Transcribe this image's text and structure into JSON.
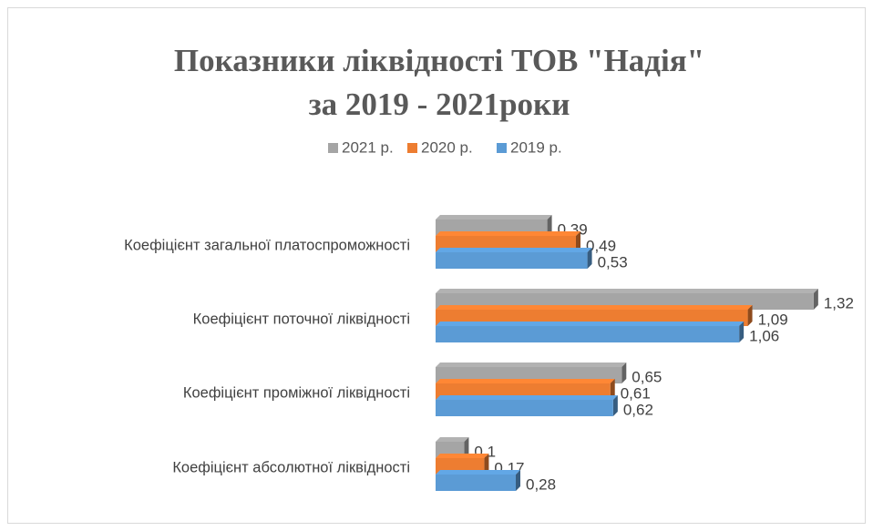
{
  "chart_data": {
    "type": "bar",
    "orientation": "horizontal",
    "title": [
      "Показники ліквідності ТОВ \"Надія\"",
      "за 2019 - 2021роки"
    ],
    "categories": [
      "Коефіцієнт загальної платоспроможності",
      "Коефіцієнт поточної ліквідності",
      "Коефіцієнт проміжної ліквідності",
      "Коефіцієнт абсолютної ліквідності"
    ],
    "series": [
      {
        "name": "2021 р.",
        "color": "#a5a5a5",
        "values": [
          0.39,
          1.32,
          0.65,
          0.1
        ],
        "value_labels": [
          "0,39",
          "1,32",
          "0,65",
          "0,1"
        ]
      },
      {
        "name": "2020 р.",
        "color": "#ed7d31",
        "values": [
          0.49,
          1.09,
          0.61,
          0.17
        ],
        "value_labels": [
          "0,49",
          "1,09",
          "0,61",
          "0,17"
        ]
      },
      {
        "name": "2019 р.",
        "color": "#5b9bd5",
        "values": [
          0.53,
          1.06,
          0.62,
          0.28
        ],
        "value_labels": [
          "0,53",
          "1,06",
          "0,62",
          "0,28"
        ]
      }
    ],
    "xlim": [
      0,
      1.4
    ],
    "legend": "top"
  }
}
